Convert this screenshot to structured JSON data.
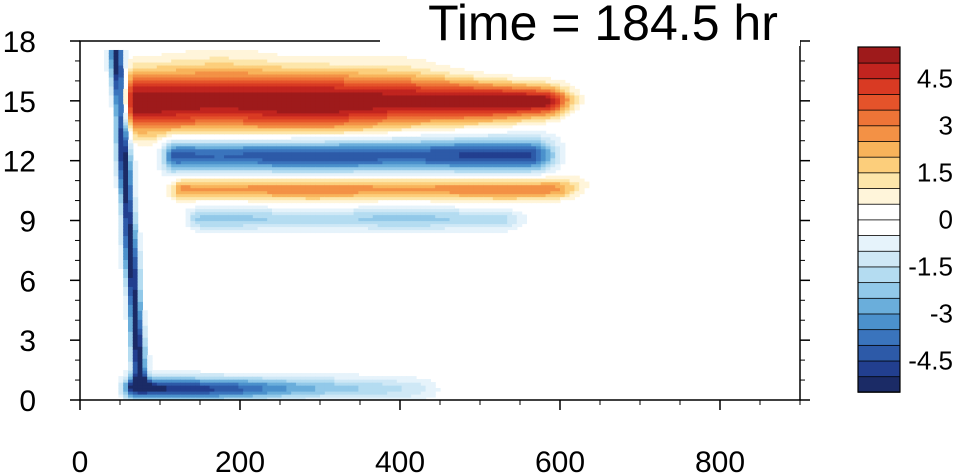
{
  "chart_data": {
    "type": "heatmap",
    "title": "Time = 184.5 hr",
    "xlabel": "",
    "ylabel": "",
    "xlim": [
      0,
      900
    ],
    "ylim": [
      0,
      18
    ],
    "x_ticks": [
      0,
      200,
      400,
      600,
      800
    ],
    "y_ticks": [
      0,
      3,
      6,
      9,
      12,
      15,
      18
    ],
    "colorbar": {
      "levels": [
        -5.5,
        -5,
        -4.5,
        -4,
        -3.5,
        -3,
        -2.5,
        -2,
        -1.5,
        -1,
        -0.5,
        0,
        0.5,
        1,
        1.5,
        2,
        2.5,
        3,
        3.5,
        4,
        4.5,
        5,
        5.5
      ],
      "colors": [
        "#1b2b66",
        "#223f8f",
        "#2d5aa8",
        "#3a74bd",
        "#4b91cc",
        "#6aaedb",
        "#92c9e9",
        "#b4dcf1",
        "#cfe8f6",
        "#e6f3fb",
        "#ffffff",
        "#ffffff",
        "#fff5da",
        "#fde6aa",
        "#fcce7b",
        "#f8b35a",
        "#f39145",
        "#ee7437",
        "#e5532a",
        "#d93a23",
        "#c1241f",
        "#9e1a1b"
      ],
      "labels": [
        "4.5",
        "3",
        "1.5",
        "0",
        "-1.5",
        "-3",
        "-4.5"
      ]
    },
    "features": [
      {
        "name": "upper warm band",
        "sign": "positive",
        "x_range": [
          70,
          580
        ],
        "y_center": 15.0,
        "y_half_width": 1.1,
        "peak": 5.5
      },
      {
        "name": "cool band below warm band",
        "sign": "negative",
        "x_range": [
          120,
          560
        ],
        "y_center": 12.3,
        "y_half_width": 0.6,
        "peak": -4.5
      },
      {
        "name": "warm band near 10.5",
        "sign": "positive",
        "x_range": [
          130,
          590
        ],
        "y_center": 10.6,
        "y_half_width": 0.4,
        "peak": 2.8
      },
      {
        "name": "cool band near 9",
        "sign": "negative",
        "x_range": [
          150,
          520
        ],
        "y_center": 9.1,
        "y_half_width": 0.4,
        "peak": -2.0
      },
      {
        "name": "surface cool band",
        "sign": "negative",
        "x_range": [
          70,
          420
        ],
        "y_center": 0.6,
        "y_half_width": 0.4,
        "peak": -5.5
      },
      {
        "name": "slanted cool front",
        "sign": "negative",
        "x_range": [
          55,
          80
        ],
        "y_center": 9.0,
        "y_half_width": 8.0,
        "peak": -5.5
      }
    ]
  }
}
